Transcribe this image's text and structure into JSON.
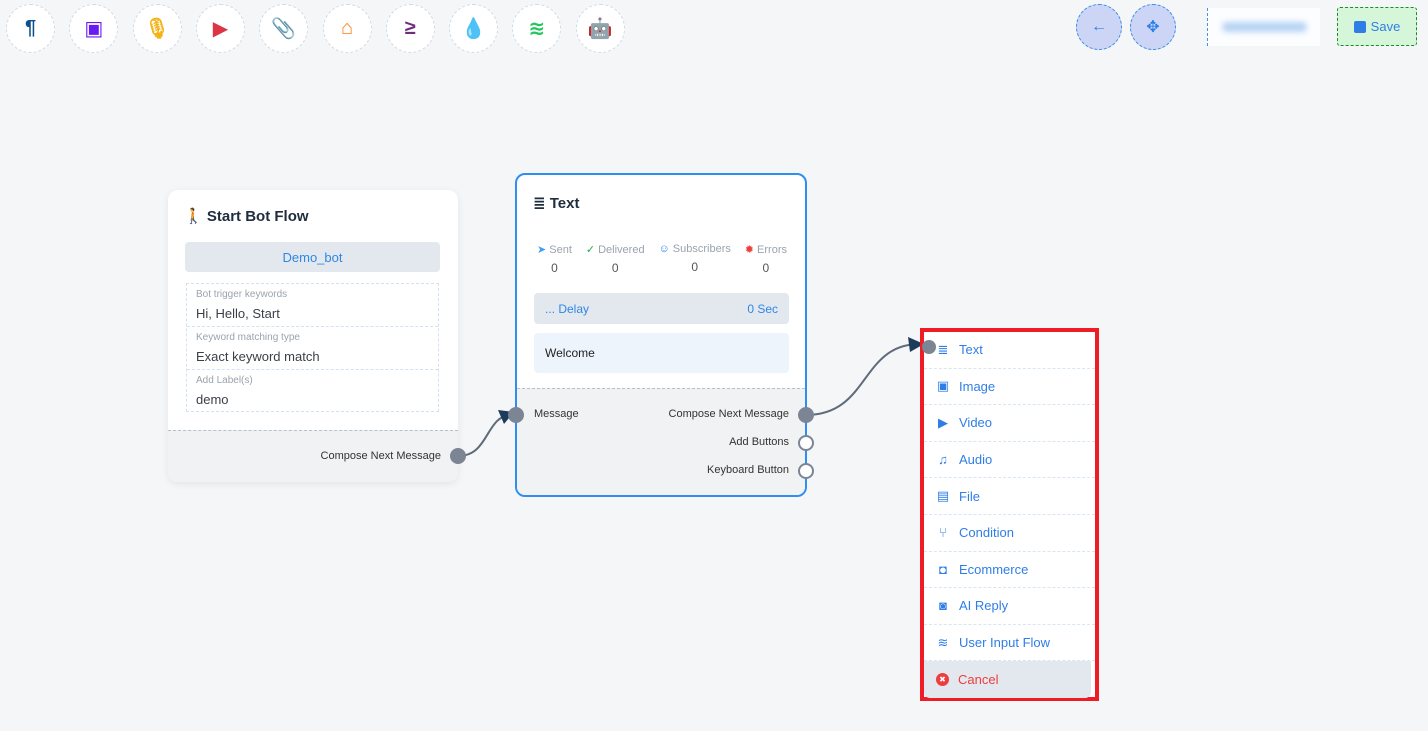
{
  "toolbar": {
    "items": [
      {
        "name": "paragraph-icon",
        "glyph": "¶",
        "color": "#0d4f8b"
      },
      {
        "name": "image-icon",
        "glyph": "▣",
        "color": "#6a1bf5"
      },
      {
        "name": "microphone-icon",
        "glyph": "🎙",
        "color": "#f5b316"
      },
      {
        "name": "youtube-icon",
        "glyph": "▶",
        "color": "#dc3545"
      },
      {
        "name": "paperclip-icon",
        "glyph": "📎",
        "color": "#28a745"
      },
      {
        "name": "store-icon",
        "glyph": "⌂",
        "color": "#fd7e14"
      },
      {
        "name": "greater-equal-icon",
        "glyph": "≥",
        "color": "#6f2e7a"
      },
      {
        "name": "droplet-icon",
        "glyph": "💧",
        "color": "#c8102e"
      },
      {
        "name": "stack-icon",
        "glyph": "≋",
        "color": "#22c55e"
      },
      {
        "name": "robot-icon",
        "glyph": "🤖",
        "color": "#1a1ae6"
      }
    ]
  },
  "header": {
    "back_icon": "←",
    "fit_icon": "✥",
    "save_label": "Save"
  },
  "start_node": {
    "title": "Start Bot Flow",
    "bot_name": "Demo_bot",
    "fields": [
      {
        "label": "Bot trigger keywords",
        "value": "Hi, Hello, Start"
      },
      {
        "label": "Keyword matching type",
        "value": "Exact keyword match"
      },
      {
        "label": "Add Label(s)",
        "value": "demo"
      }
    ],
    "output": "Compose Next Message"
  },
  "text_node": {
    "title": "Text",
    "stats": [
      {
        "label": "Sent",
        "value": "0",
        "icon": "➤",
        "color": "#3ea0f0"
      },
      {
        "label": "Delivered",
        "value": "0",
        "icon": "✓",
        "color": "#28a745"
      },
      {
        "label": "Subscribers",
        "value": "0",
        "icon": "☺",
        "color": "#2f7ee6"
      },
      {
        "label": "Errors",
        "value": "0",
        "icon": "✹",
        "color": "#ee3d3d"
      }
    ],
    "delay_label": "... Delay",
    "delay_value": "0 Sec",
    "message": "Welcome",
    "input": "Message",
    "outputs": [
      "Compose Next Message",
      "Add Buttons",
      "Keyboard Button"
    ]
  },
  "menu": {
    "items": [
      {
        "label": "Text",
        "icon": "≣",
        "name": "text"
      },
      {
        "label": "Image",
        "icon": "▣",
        "name": "image"
      },
      {
        "label": "Video",
        "icon": "▶",
        "name": "video"
      },
      {
        "label": "Audio",
        "icon": "♫",
        "name": "audio"
      },
      {
        "label": "File",
        "icon": "▤",
        "name": "file"
      },
      {
        "label": "Condition",
        "icon": "⑂",
        "name": "condition"
      },
      {
        "label": "Ecommerce",
        "icon": "◘",
        "name": "ecommerce"
      },
      {
        "label": "AI Reply",
        "icon": "◙",
        "name": "ai-reply"
      },
      {
        "label": "User Input Flow",
        "icon": "≋",
        "name": "user-input-flow"
      }
    ],
    "cancel": "Cancel",
    "cancel_icon": "✖"
  }
}
